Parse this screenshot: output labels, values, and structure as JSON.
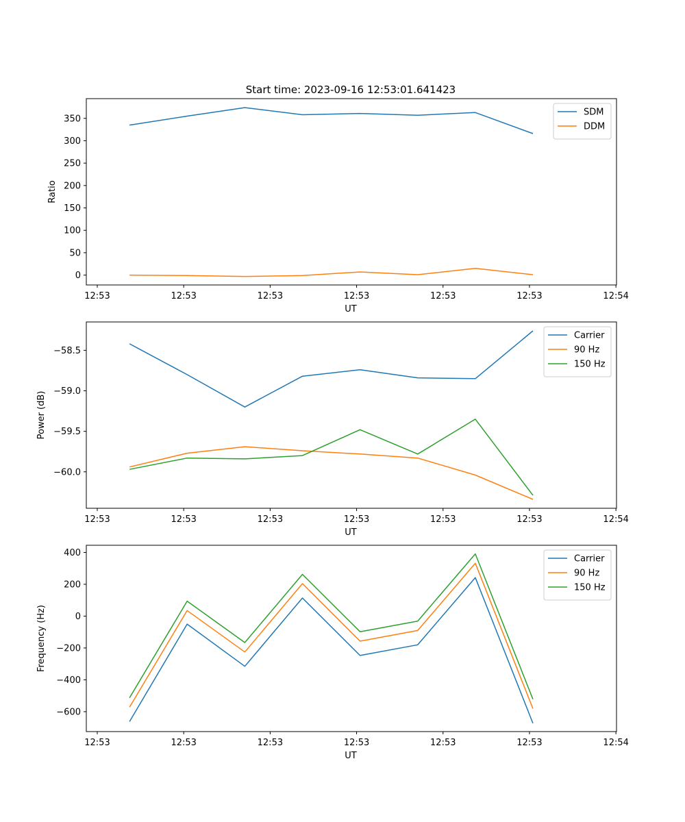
{
  "figure": {
    "title": "Start time: 2023-09-16 12:53:01.641423"
  },
  "chart_data": [
    {
      "type": "line",
      "xlabel": "UT",
      "ylabel": "Ratio",
      "x": [
        0,
        1,
        2,
        3,
        4,
        5,
        6,
        7
      ],
      "xlim": [
        -0.75,
        8.45
      ],
      "x_ticks": [
        {
          "pos": -0.56,
          "label": "12:53"
        },
        {
          "pos": 0.94,
          "label": "12:53"
        },
        {
          "pos": 2.44,
          "label": "12:53"
        },
        {
          "pos": 3.94,
          "label": "12:53"
        },
        {
          "pos": 5.44,
          "label": "12:53"
        },
        {
          "pos": 6.94,
          "label": "12:53"
        },
        {
          "pos": 8.44,
          "label": "12:54"
        }
      ],
      "ylim": [
        -22,
        394
      ],
      "y_ticks": [
        0,
        50,
        100,
        150,
        200,
        250,
        300,
        350
      ],
      "y_tick_labels": [
        "0",
        "50",
        "100",
        "150",
        "200",
        "250",
        "300",
        "350"
      ],
      "series": [
        {
          "name": "SDM",
          "color": "#1f77b4",
          "values": [
            335,
            355,
            374,
            358,
            361,
            357,
            363,
            316
          ]
        },
        {
          "name": "DDM",
          "color": "#ff7f0e",
          "values": [
            0,
            -1,
            -3,
            -1,
            7,
            1,
            15,
            1
          ]
        }
      ],
      "legend": "top-right"
    },
    {
      "type": "line",
      "xlabel": "UT",
      "ylabel": "Power (dB)",
      "x": [
        0,
        1,
        2,
        3,
        4,
        5,
        6,
        7
      ],
      "xlim": [
        -0.75,
        8.45
      ],
      "x_ticks": [
        {
          "pos": -0.56,
          "label": "12:53"
        },
        {
          "pos": 0.94,
          "label": "12:53"
        },
        {
          "pos": 2.44,
          "label": "12:53"
        },
        {
          "pos": 3.94,
          "label": "12:53"
        },
        {
          "pos": 5.44,
          "label": "12:53"
        },
        {
          "pos": 6.94,
          "label": "12:53"
        },
        {
          "pos": 8.44,
          "label": "12:54"
        }
      ],
      "ylim": [
        -60.45,
        -58.15
      ],
      "y_ticks": [
        -60.0,
        -59.5,
        -59.0,
        -58.5
      ],
      "y_tick_labels": [
        "−60.0",
        "−59.5",
        "−59.0",
        "−58.5"
      ],
      "series": [
        {
          "name": "Carrier",
          "color": "#1f77b4",
          "values": [
            -58.42,
            -58.8,
            -59.2,
            -58.82,
            -58.74,
            -58.84,
            -58.85,
            -58.26
          ]
        },
        {
          "name": "90 Hz",
          "color": "#ff7f0e",
          "values": [
            -59.94,
            -59.77,
            -59.69,
            -59.74,
            -59.78,
            -59.83,
            -60.04,
            -60.34
          ]
        },
        {
          "name": "150 Hz",
          "color": "#2ca02c",
          "values": [
            -59.97,
            -59.83,
            -59.84,
            -59.8,
            -59.48,
            -59.78,
            -59.35,
            -60.29
          ]
        }
      ],
      "legend": "top-right"
    },
    {
      "type": "line",
      "xlabel": "UT",
      "ylabel": "Frequency (Hz)",
      "x": [
        0,
        1,
        2,
        3,
        4,
        5,
        6,
        7
      ],
      "xlim": [
        -0.75,
        8.45
      ],
      "x_ticks": [
        {
          "pos": -0.56,
          "label": "12:53"
        },
        {
          "pos": 0.94,
          "label": "12:53"
        },
        {
          "pos": 2.44,
          "label": "12:53"
        },
        {
          "pos": 3.94,
          "label": "12:53"
        },
        {
          "pos": 5.44,
          "label": "12:53"
        },
        {
          "pos": 6.94,
          "label": "12:53"
        },
        {
          "pos": 8.44,
          "label": "12:54"
        }
      ],
      "ylim": [
        -725,
        445
      ],
      "y_ticks": [
        -600,
        -400,
        -200,
        0,
        200,
        400
      ],
      "y_tick_labels": [
        "−600",
        "−400",
        "−200",
        "0",
        "200",
        "400"
      ],
      "series": [
        {
          "name": "Carrier",
          "color": "#1f77b4",
          "values": [
            -662,
            -50,
            -315,
            114,
            -247,
            -180,
            242,
            -673
          ]
        },
        {
          "name": "90 Hz",
          "color": "#ff7f0e",
          "values": [
            -572,
            35,
            -225,
            204,
            -157,
            -90,
            332,
            -581
          ]
        },
        {
          "name": "150 Hz",
          "color": "#2ca02c",
          "values": [
            -513,
            94,
            -166,
            262,
            -98,
            -31,
            391,
            -522
          ]
        }
      ],
      "legend": "top-right"
    }
  ]
}
